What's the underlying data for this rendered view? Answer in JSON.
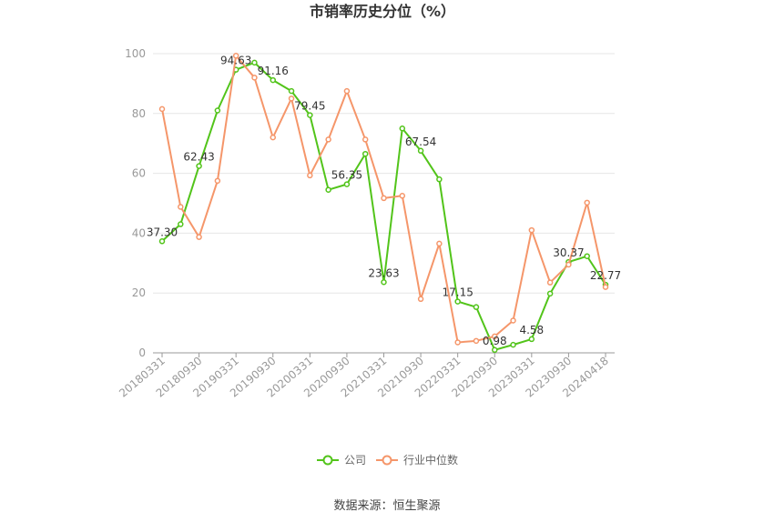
{
  "chart_data": {
    "type": "line",
    "title": "市销率历史分位（%）",
    "source": "数据来源：恒生聚源",
    "ylim": [
      0,
      100
    ],
    "yticks": [
      "0",
      "20",
      "40",
      "60",
      "80",
      "100"
    ],
    "x_tick_labels": [
      "20180331",
      "20180930",
      "20190331",
      "20190930",
      "20200331",
      "20200930",
      "20210331",
      "20210930",
      "20220331",
      "20220930",
      "20230331",
      "20230930",
      "20240418"
    ],
    "x": [
      "20180331",
      "20180630",
      "20180930",
      "20181231",
      "20190331",
      "20190630",
      "20190930",
      "20191231",
      "20200331",
      "20200630",
      "20200930",
      "20201231",
      "20210331",
      "20210630",
      "20210930",
      "20211231",
      "20220331",
      "20220630",
      "20220930",
      "20221231",
      "20230331",
      "20230630",
      "20230930",
      "20231231",
      "20240418"
    ],
    "grid": true,
    "legend_position": "bottom",
    "series": [
      {
        "name": "公司",
        "color": "#52c41a",
        "values": [
          37.3,
          43.0,
          62.43,
          81.0,
          94.63,
          97.0,
          91.16,
          87.5,
          79.45,
          54.5,
          56.35,
          66.5,
          23.63,
          75.0,
          67.54,
          58.0,
          17.15,
          15.3,
          0.98,
          2.7,
          4.58,
          19.8,
          30.37,
          32.3,
          22.77
        ],
        "data_labels": {
          "0": "37.30",
          "2": "62.43",
          "4": "94.63",
          "6": "91.16",
          "8": "79.45",
          "10": "56.35",
          "12": "23.63",
          "14": "67.54",
          "16": "17.15",
          "18": "0.98",
          "20": "4.58",
          "22": "30.37",
          "24": "22.77"
        }
      },
      {
        "name": "行业中位数",
        "color": "#f5966a",
        "values": [
          81.5,
          48.8,
          38.7,
          57.5,
          99.3,
          92.0,
          72.0,
          85.0,
          59.3,
          71.3,
          87.5,
          71.3,
          51.7,
          52.5,
          18.0,
          36.5,
          3.5,
          4.0,
          5.5,
          10.8,
          41.0,
          23.5,
          29.5,
          50.2,
          22.0
        ]
      }
    ]
  }
}
